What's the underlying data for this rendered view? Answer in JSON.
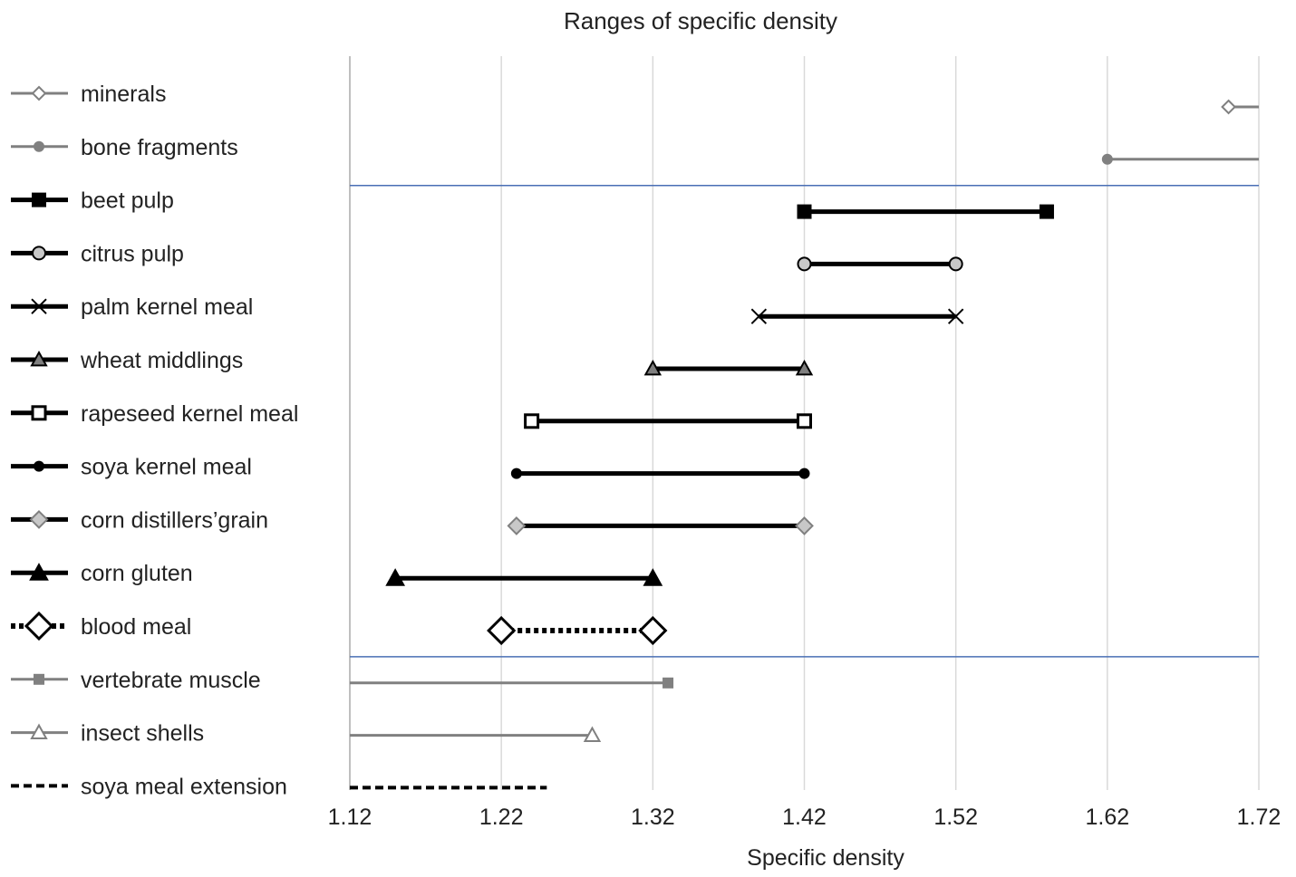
{
  "chart_data": {
    "type": "range",
    "title": "Ranges of specific density",
    "xlabel": "Specific density",
    "ylabel": "",
    "xlim": [
      1.12,
      1.72
    ],
    "x_ticks": [
      "1.12",
      "1.22",
      "1.32",
      "1.42",
      "1.52",
      "1.62",
      "1.72"
    ],
    "grid": true,
    "legend_position": "left",
    "series": [
      {
        "name": "minerals",
        "range": [
          1.7,
          1.72
        ],
        "marker": "diamond-open-small",
        "color": "#808080",
        "weight": "thin"
      },
      {
        "name": "bone fragments",
        "range": [
          1.62,
          1.72
        ],
        "marker": "circle-filled",
        "color": "#808080",
        "weight": "thin"
      },
      {
        "name": "beet pulp",
        "range": [
          1.42,
          1.58
        ],
        "marker": "square-filled",
        "color": "#000000",
        "weight": "thick"
      },
      {
        "name": "citrus pulp",
        "range": [
          1.42,
          1.52
        ],
        "marker": "circle-grey",
        "color": "#000000",
        "weight": "thick"
      },
      {
        "name": "palm kernel meal",
        "range": [
          1.39,
          1.52
        ],
        "marker": "x",
        "color": "#000000",
        "weight": "thick"
      },
      {
        "name": "wheat middlings",
        "range": [
          1.32,
          1.42
        ],
        "marker": "triangle-grey",
        "color": "#000000",
        "weight": "thick"
      },
      {
        "name": "rapeseed kernel meal",
        "range": [
          1.24,
          1.42
        ],
        "marker": "square-open",
        "color": "#000000",
        "weight": "thick"
      },
      {
        "name": "soya kernel meal",
        "range": [
          1.23,
          1.42
        ],
        "marker": "circle-black",
        "color": "#000000",
        "weight": "thick"
      },
      {
        "name": "corn distillers’grain",
        "range": [
          1.23,
          1.42
        ],
        "marker": "diamond-grey",
        "color": "#000000",
        "weight": "thick"
      },
      {
        "name": "corn gluten",
        "range": [
          1.15,
          1.32
        ],
        "marker": "triangle-black",
        "color": "#000000",
        "weight": "thick"
      },
      {
        "name": "blood meal",
        "range": [
          1.22,
          1.32
        ],
        "marker": "diamond-open-large",
        "color": "#000000",
        "weight": "dotted"
      },
      {
        "name": "vertebrate muscle",
        "range": [
          1.12,
          1.33
        ],
        "marker": "square-grey",
        "color": "#808080",
        "weight": "thin"
      },
      {
        "name": "insect shells",
        "range": [
          1.12,
          1.28
        ],
        "marker": "triangle-open",
        "color": "#808080",
        "weight": "thin"
      },
      {
        "name": "soya meal extension",
        "range": [
          1.12,
          1.25
        ],
        "marker": "none",
        "color": "#000000",
        "weight": "dashed"
      }
    ],
    "separators": [
      1.5,
      10.5
    ],
    "separator_color": "#4a6fb5",
    "grid_color": "#d9d9d9"
  }
}
